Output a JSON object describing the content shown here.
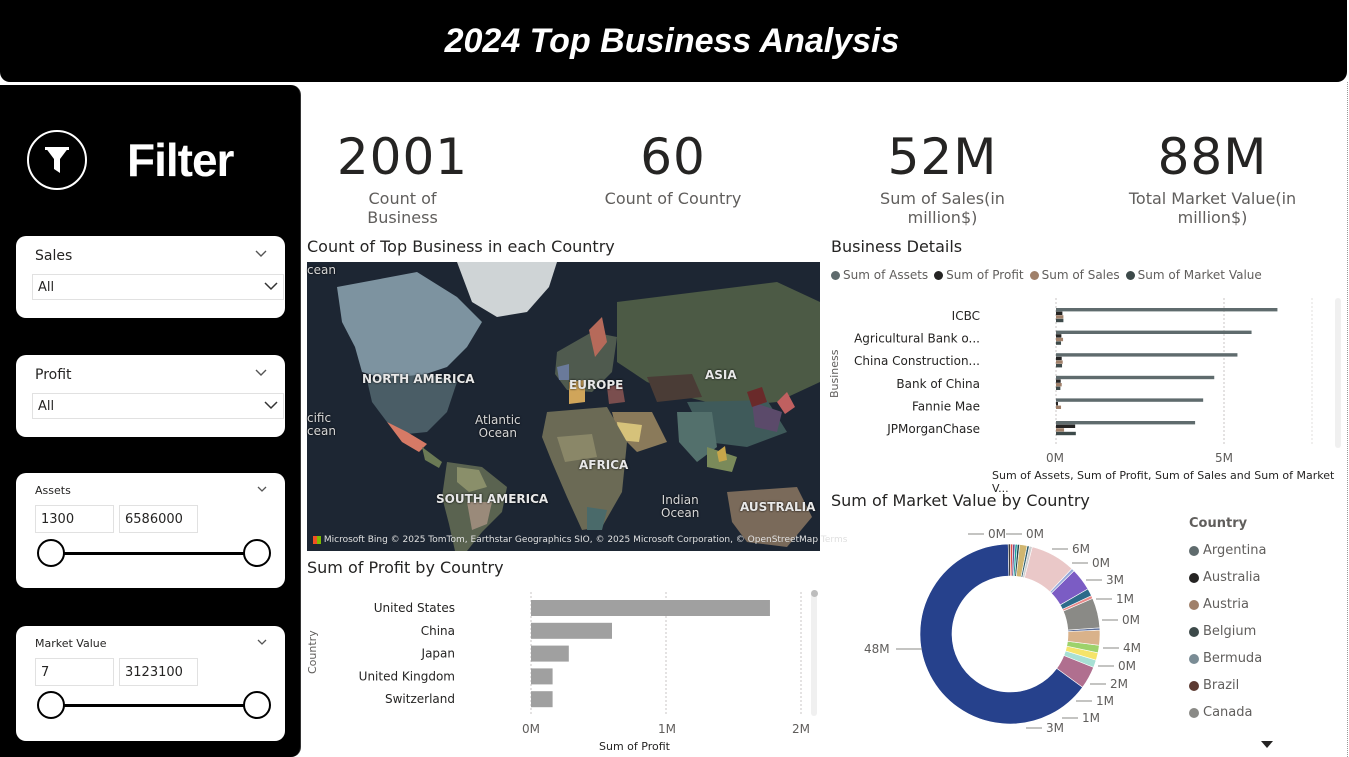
{
  "header": {
    "title": "2024 Top Business Analysis"
  },
  "filter": {
    "title": "Filter",
    "icon": "funnel-icon",
    "sales": {
      "label": "Sales",
      "value": "All"
    },
    "profit": {
      "label": "Profit",
      "value": "All"
    },
    "assets": {
      "label": "Assets",
      "min": "1300",
      "max": "6586000"
    },
    "market_value": {
      "label": "Market Value",
      "min": "7",
      "max": "3123100"
    }
  },
  "kpis": [
    {
      "value": "2001",
      "label": "Count of Business"
    },
    {
      "value": "60",
      "label": "Count of Country"
    },
    {
      "value": "52M",
      "label": "Sum of Sales(in million$)"
    },
    {
      "value": "88M",
      "label": "Total Market Value(in million$)"
    }
  ],
  "map": {
    "title": "Count of Top Business in each Country",
    "labels": {
      "north_america": "NORTH AMERICA",
      "europe": "EUROPE",
      "asia": "ASIA",
      "africa": "AFRICA",
      "south_america": "SOUTH AMERICA",
      "australia": "AUSTRALIA",
      "atlantic_1": "Atlantic",
      "atlantic_2": "Ocean",
      "indian_1": "Indian",
      "indian_2": "Ocean",
      "pacific_1": "cific",
      "pacific_2": "cean",
      "top_ocean": "cean"
    },
    "attribution": "© 2025 TomTom, Earthstar Geographics SIO, © 2025 Microsoft Corporation, © OpenStreetMap  Terms",
    "logo": "Microsoft Bing"
  },
  "business_details": {
    "title": "Business Details",
    "legend": [
      {
        "name": "Sum of Assets",
        "color": "#5f6b6d"
      },
      {
        "name": "Sum of Profit",
        "color": "#252423"
      },
      {
        "name": "Sum of Sales",
        "color": "#a0806a"
      },
      {
        "name": "Sum of Market  Value",
        "color": "#3d4a4a"
      }
    ],
    "y_axis_label": "Business",
    "x_axis_label": "Sum of Assets, Sum of Profit, Sum of Sales and Sum of Market V...",
    "x_ticks": [
      "0M",
      "5M"
    ]
  },
  "profit_chart": {
    "title": "Sum of Profit by Country",
    "y_axis_label": "Country",
    "x_axis_label": "Sum of Profit",
    "x_ticks": [
      "0M",
      "1M",
      "2M"
    ]
  },
  "market_chart": {
    "title": "Sum of Market Value by Country",
    "legend_title": "Country",
    "legend": [
      {
        "name": "Argentina",
        "color": "#5f6b6d"
      },
      {
        "name": "Australia",
        "color": "#252423"
      },
      {
        "name": "Austria",
        "color": "#a0806a"
      },
      {
        "name": "Belgium",
        "color": "#3d4a4a"
      },
      {
        "name": "Bermuda",
        "color": "#7a8c95"
      },
      {
        "name": "Brazil",
        "color": "#5c3a32"
      },
      {
        "name": "Canada",
        "color": "#8a8a86"
      }
    ],
    "data_labels": [
      "0M",
      "0M",
      "6M",
      "0M",
      "3M",
      "1M",
      "0M",
      "4M",
      "0M",
      "2M",
      "1M",
      "1M",
      "3M",
      "48M"
    ]
  },
  "chart_data": [
    {
      "type": "bar",
      "title": "Business Details",
      "categories": [
        "ICBC",
        "Agricultural Bank o...",
        "China Construction...",
        "Bank of China",
        "Fannie Mae",
        "JPMorganChase"
      ],
      "series": [
        {
          "name": "Sum of Assets",
          "values": [
            6.59,
            5.82,
            5.4,
            4.71,
            4.38,
            4.14
          ]
        },
        {
          "name": "Sum of Profit",
          "values": [
            0.19,
            0.16,
            0.17,
            0.14,
            0.02,
            0.57
          ]
        },
        {
          "name": "Sum of Sales",
          "values": [
            0.22,
            0.21,
            0.2,
            0.17,
            0.15,
            0.24
          ]
        },
        {
          "name": "Sum of Market  Value",
          "values": [
            0.22,
            0.15,
            0.18,
            0.13,
            0.0,
            0.59
          ]
        }
      ],
      "xlim": [
        0,
        7.8
      ]
    },
    {
      "type": "bar",
      "title": "Sum of Profit by Country",
      "categories": [
        "United States",
        "China",
        "Japan",
        "United Kingdom",
        "Switzerland"
      ],
      "values": [
        1.77,
        0.6,
        0.28,
        0.16,
        0.16
      ],
      "xlim": [
        0,
        2
      ]
    },
    {
      "type": "pie",
      "title": "Sum of Market Value by Country",
      "values": [
        48,
        3,
        1,
        1,
        1,
        2,
        0.3,
        4,
        0.4,
        1,
        3,
        0.4,
        6,
        0.4,
        0.3,
        1,
        0.3,
        0.3,
        0.3,
        0.3,
        0.3
      ],
      "colors": [
        "#26418c",
        "#b06f8f",
        "#a7e0d4",
        "#f5e46a",
        "#9dd26b",
        "#d9b28a",
        "#5a6d99",
        "#8a8a86",
        "#e98a8a",
        "#2c6b8a",
        "#7b5cc4",
        "#96a9d8",
        "#eac8c8",
        "#cfcfcf",
        "#2f5e6c",
        "#d0b670",
        "#21454f",
        "#1aa0a0",
        "#6a4e8a",
        "#e14a4a",
        "#3f3f3f"
      ]
    }
  ]
}
